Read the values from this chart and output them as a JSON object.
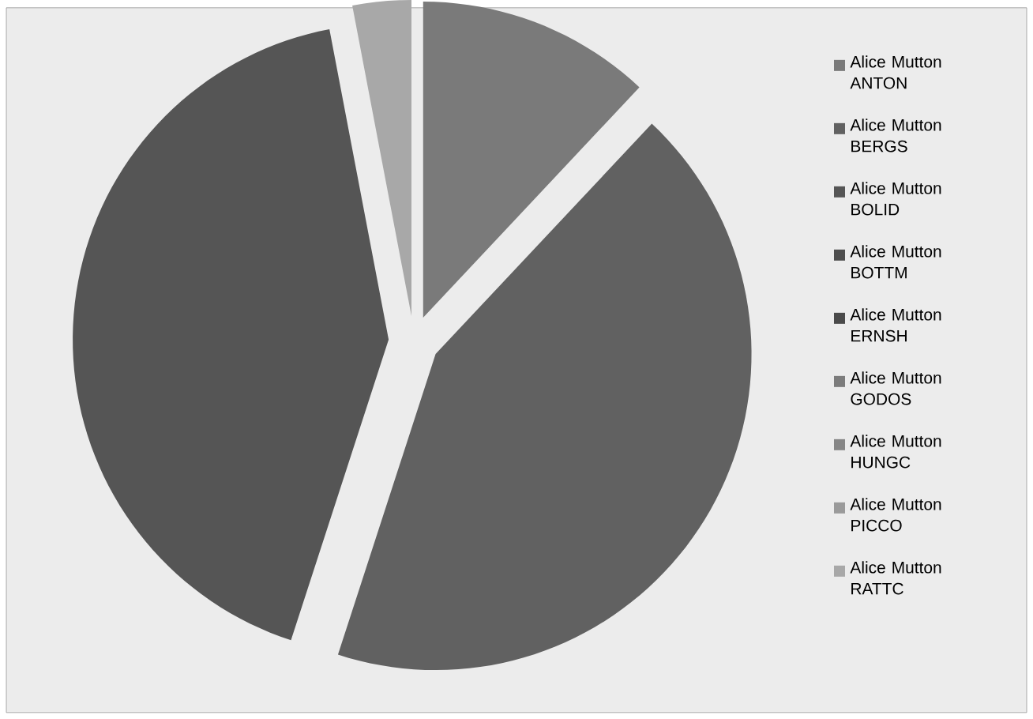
{
  "chart_data": {
    "type": "pie",
    "categories": [
      "Alice Mutton ANTON",
      "Alice Mutton BERGS",
      "Alice Mutton BOLID",
      "Alice Mutton BOTTM",
      "Alice Mutton ERNSH",
      "Alice Mutton GODOS",
      "Alice Mutton HUNGC",
      "Alice Mutton PICCO",
      "Alice Mutton RATTC"
    ],
    "values": [
      12,
      43,
      42,
      0,
      0,
      0,
      0,
      0,
      3
    ],
    "colors": [
      "#7a7a7a",
      "#616161",
      "#555555",
      "#4e4e4e",
      "#4a4a4a",
      "#7c7c7c",
      "#868686",
      "#9a9a9a",
      "#a8a8a8"
    ],
    "legend": "right"
  }
}
